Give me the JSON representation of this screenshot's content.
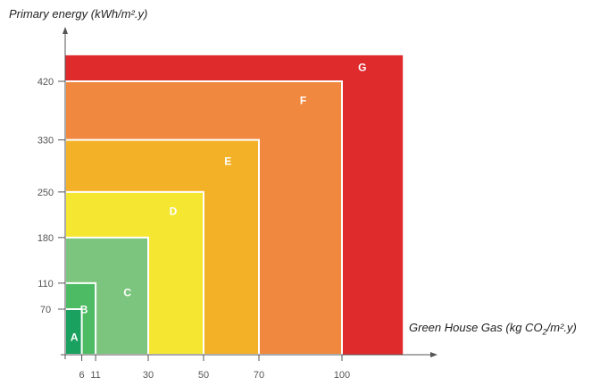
{
  "chart_data": {
    "type": "nested-rectangles",
    "title": "",
    "ylabel": "Primary energy (kWh/m².y)",
    "xlabel_parts": {
      "before": "Green House Gas (kg CO",
      "sub": "2",
      "after": "/m².y)"
    },
    "x_ticks": [
      6,
      11,
      30,
      50,
      70,
      100
    ],
    "y_ticks": [
      70,
      110,
      180,
      250,
      330,
      420
    ],
    "xlim": [
      0,
      124
    ],
    "ylim": [
      0,
      520
    ],
    "bands": [
      {
        "label": "G",
        "x_max": 122,
        "y_max": 460,
        "color": "#e02b2d"
      },
      {
        "label": "F",
        "x_max": 100,
        "y_max": 420,
        "color": "#f08840"
      },
      {
        "label": "E",
        "x_max": 70,
        "y_max": 330,
        "color": "#f3b128"
      },
      {
        "label": "D",
        "x_max": 50,
        "y_max": 250,
        "color": "#f5e632"
      },
      {
        "label": "C",
        "x_max": 30,
        "y_max": 180,
        "color": "#7cc57e"
      },
      {
        "label": "B",
        "x_max": 11,
        "y_max": 110,
        "color": "#4dbb63"
      },
      {
        "label": "A",
        "x_max": 6,
        "y_max": 70,
        "color": "#1ba15f"
      }
    ],
    "grid": false,
    "legend": "none"
  }
}
